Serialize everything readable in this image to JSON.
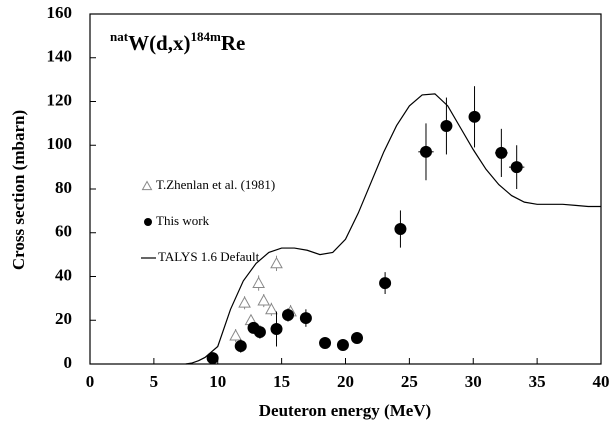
{
  "chart_data": {
    "type": "scatter",
    "title": [
      "nat",
      "W(d,x)",
      "184m",
      "Re"
    ],
    "xlabel": "Deuteron energy (MeV)",
    "ylabel": "Cross section (mbarn)",
    "xlim": [
      0,
      40
    ],
    "ylim": [
      0,
      160
    ],
    "xticks": [
      0,
      5,
      10,
      15,
      20,
      25,
      30,
      35,
      40
    ],
    "yticks": [
      0,
      20,
      40,
      60,
      80,
      100,
      120,
      140,
      160
    ],
    "series": [
      {
        "name": "T.Zhenlan et al. (1981)",
        "marker": "triangle",
        "color": "#888888",
        "x": [
          11.4,
          12.1,
          12.6,
          13.2,
          13.6,
          14.2,
          14.6,
          15.7
        ],
        "values": [
          13,
          28,
          20,
          37,
          29,
          25,
          46,
          24
        ],
        "yerr": [
          3,
          3,
          2.5,
          3.5,
          3,
          3,
          3.5,
          3
        ]
      },
      {
        "name": "This work",
        "marker": "circle",
        "color": "#000000",
        "x": [
          9.6,
          11.8,
          12.8,
          13.3,
          14.6,
          15.5,
          16.9,
          18.4,
          19.8,
          20.9,
          23.1,
          24.3,
          26.3,
          27.9,
          30.1,
          32.2,
          33.4
        ],
        "values": [
          2.7,
          8.2,
          16.5,
          14.6,
          16,
          22.4,
          21,
          9.6,
          8.7,
          11.9,
          37,
          61.7,
          97,
          108.8,
          113,
          96.5,
          90
        ],
        "yerr": [
          1.5,
          3,
          2.5,
          3,
          8,
          3,
          4,
          1,
          1,
          1.5,
          5,
          8.5,
          13,
          13,
          14,
          11,
          10
        ],
        "xerr": [
          0.3,
          0.4,
          0.4,
          0.4,
          0.4,
          0.4,
          0.4,
          0.4,
          0.4,
          0.4,
          0.4,
          0.4,
          0.6,
          0.4,
          0.4,
          0.5,
          0.6
        ]
      },
      {
        "name": "TALYS 1.6 Default",
        "marker": "line",
        "color": "#000000",
        "x": [
          7.5,
          8,
          8.5,
          9,
          10,
          11,
          12,
          13,
          14,
          15,
          16,
          17,
          18,
          19,
          20,
          21,
          22,
          23,
          24,
          25,
          26,
          27,
          28,
          29,
          30,
          31,
          32,
          33,
          34,
          35,
          36,
          37,
          38,
          39,
          40
        ],
        "values": [
          0,
          0.5,
          1.5,
          3,
          8,
          25,
          38,
          46,
          51,
          53,
          53,
          52,
          50,
          51,
          57,
          69,
          83,
          97,
          109,
          118,
          123,
          123.5,
          118,
          108,
          98,
          89,
          82,
          77,
          74,
          73,
          73,
          73,
          72.5,
          72,
          72
        ]
      }
    ]
  }
}
